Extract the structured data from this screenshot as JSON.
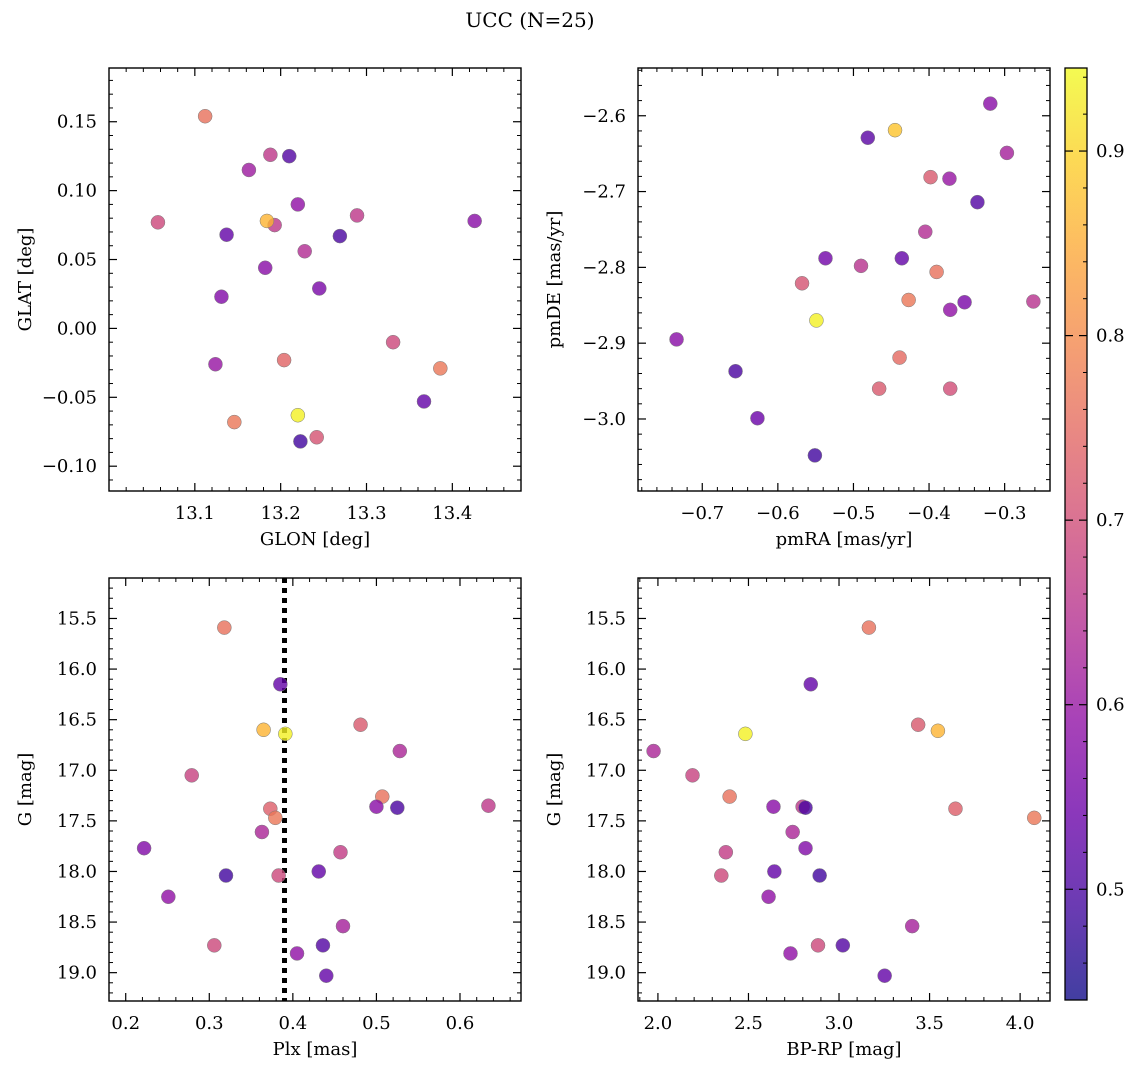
{
  "figure": {
    "title": "UCC (N=25)"
  },
  "colorbar": {
    "range": [
      0.44,
      0.945
    ],
    "ticks": [
      0.5,
      0.6,
      0.7,
      0.8,
      0.9
    ],
    "tick_labels": [
      "0.5",
      "0.6",
      "0.7",
      "0.8",
      "0.9"
    ],
    "colormap": "plasma"
  },
  "chart_data": [
    {
      "type": "scatter",
      "xlabel": "GLON [deg]",
      "ylabel": "GLAT [deg]",
      "xlim": [
        13.0,
        13.48
      ],
      "ylim": [
        -0.118,
        0.189
      ],
      "xticks": [
        13.1,
        13.2,
        13.3,
        13.4
      ],
      "xtick_labels": [
        "13.1",
        "13.2",
        "13.3",
        "13.4"
      ],
      "yticks": [
        -0.1,
        -0.05,
        0.0,
        0.05,
        0.1,
        0.15
      ],
      "ytick_labels": [
        "−0.10",
        "−0.05",
        "0.00",
        "0.05",
        "0.10",
        "0.15"
      ],
      "x": [
        13.112,
        13.188,
        13.21,
        13.163,
        13.22,
        13.289,
        13.057,
        13.193,
        13.137,
        13.228,
        13.269,
        13.182,
        13.245,
        13.131,
        13.426,
        13.331,
        13.386,
        13.124,
        13.204,
        13.22,
        13.367,
        13.146,
        13.242,
        13.223,
        13.184
      ],
      "y": [
        0.154,
        0.126,
        0.125,
        0.115,
        0.09,
        0.082,
        0.077,
        0.075,
        0.068,
        0.056,
        0.067,
        0.044,
        0.029,
        0.023,
        0.078,
        -0.01,
        -0.029,
        -0.026,
        -0.023,
        -0.063,
        -0.053,
        -0.068,
        -0.079,
        -0.082,
        0.078
      ],
      "c": [
        0.76,
        0.66,
        0.51,
        0.61,
        0.59,
        0.66,
        0.69,
        0.66,
        0.53,
        0.64,
        0.5,
        0.58,
        0.56,
        0.57,
        0.58,
        0.69,
        0.77,
        0.6,
        0.74,
        0.935,
        0.53,
        0.77,
        0.71,
        0.49,
        0.86
      ]
    },
    {
      "type": "scatter",
      "xlabel": "pmRA [mas/yr]",
      "ylabel": "pmDE [mas/yr]",
      "xlim": [
        -0.785,
        -0.24
      ],
      "ylim": [
        -3.095,
        -2.537
      ],
      "xticks": [
        -0.7,
        -0.6,
        -0.5,
        -0.4,
        -0.3
      ],
      "xtick_labels": [
        "−0.7",
        "−0.6",
        "−0.5",
        "−0.4",
        "−0.3"
      ],
      "yticks": [
        -3.0,
        -2.9,
        -2.8,
        -2.7,
        -2.6
      ],
      "ytick_labels": [
        "−3.0",
        "−2.9",
        "−2.8",
        "−2.7",
        "−2.6"
      ],
      "x": [
        -0.319,
        -0.445,
        -0.481,
        -0.297,
        -0.398,
        -0.373,
        -0.336,
        -0.405,
        -0.537,
        -0.436,
        -0.49,
        -0.39,
        -0.568,
        -0.427,
        -0.353,
        -0.372,
        -0.262,
        -0.549,
        -0.734,
        -0.439,
        -0.656,
        -0.466,
        -0.372,
        -0.627,
        -0.551
      ],
      "y": [
        -2.584,
        -2.619,
        -2.629,
        -2.649,
        -2.681,
        -2.683,
        -2.714,
        -2.753,
        -2.788,
        -2.788,
        -2.798,
        -2.806,
        -2.821,
        -2.843,
        -2.846,
        -2.856,
        -2.845,
        -2.87,
        -2.895,
        -2.919,
        -2.937,
        -2.96,
        -2.96,
        -2.999,
        -3.048
      ],
      "c": [
        0.58,
        0.88,
        0.52,
        0.62,
        0.72,
        0.6,
        0.51,
        0.64,
        0.55,
        0.53,
        0.65,
        0.76,
        0.71,
        0.77,
        0.56,
        0.59,
        0.65,
        0.935,
        0.58,
        0.75,
        0.5,
        0.72,
        0.7,
        0.54,
        0.49
      ]
    },
    {
      "type": "scatter",
      "xlabel": "Plx [mas]",
      "ylabel": "G [mag]",
      "xlim": [
        0.18,
        0.673
      ],
      "ylim": [
        19.28,
        15.1
      ],
      "xticks": [
        0.2,
        0.3,
        0.4,
        0.5,
        0.6
      ],
      "xtick_labels": [
        "0.2",
        "0.3",
        "0.4",
        "0.5",
        "0.6"
      ],
      "yticks": [
        15.5,
        16.0,
        16.5,
        17.0,
        17.5,
        18.0,
        18.5,
        19.0
      ],
      "ytick_labels": [
        "15.5",
        "16.0",
        "16.5",
        "17.0",
        "17.5",
        "18.0",
        "18.5",
        "19.0"
      ],
      "vline": 0.39,
      "x": [
        0.318,
        0.385,
        0.365,
        0.391,
        0.481,
        0.528,
        0.279,
        0.507,
        0.634,
        0.5,
        0.525,
        0.373,
        0.379,
        0.363,
        0.457,
        0.222,
        0.431,
        0.32,
        0.383,
        0.251,
        0.46,
        0.436,
        0.306,
        0.405,
        0.44
      ],
      "y": [
        15.59,
        16.15,
        16.6,
        16.64,
        16.55,
        16.81,
        17.05,
        17.26,
        17.35,
        17.36,
        17.37,
        17.38,
        17.47,
        17.61,
        17.81,
        17.77,
        18.0,
        18.04,
        18.04,
        18.25,
        18.54,
        18.73,
        18.73,
        18.81,
        19.03
      ],
      "c": [
        0.76,
        0.53,
        0.86,
        0.935,
        0.72,
        0.63,
        0.68,
        0.76,
        0.66,
        0.58,
        0.5,
        0.73,
        0.77,
        0.63,
        0.67,
        0.57,
        0.53,
        0.49,
        0.69,
        0.59,
        0.62,
        0.51,
        0.69,
        0.59,
        0.53
      ]
    },
    {
      "type": "scatter",
      "xlabel": "BP-RP [mag]",
      "ylabel": "G [mag]",
      "xlim": [
        1.89,
        4.165
      ],
      "ylim": [
        19.28,
        15.1
      ],
      "xticks": [
        2.0,
        2.5,
        3.0,
        3.5,
        4.0
      ],
      "xtick_labels": [
        "2.0",
        "2.5",
        "3.0",
        "3.5",
        "4.0"
      ],
      "yticks": [
        15.5,
        16.0,
        16.5,
        17.0,
        17.5,
        18.0,
        18.5,
        19.0
      ],
      "ytick_labels": [
        "15.5",
        "16.0",
        "16.5",
        "17.0",
        "17.5",
        "18.0",
        "18.5",
        "19.0"
      ],
      "x": [
        3.165,
        2.844,
        2.483,
        3.437,
        3.546,
        1.976,
        2.191,
        2.396,
        3.643,
        4.078,
        2.638,
        2.799,
        2.815,
        2.744,
        2.375,
        2.815,
        2.643,
        2.893,
        2.35,
        2.611,
        3.404,
        2.884,
        3.021,
        2.732,
        3.252
      ],
      "y": [
        15.59,
        16.15,
        16.64,
        16.55,
        16.61,
        16.81,
        17.05,
        17.26,
        17.38,
        17.47,
        17.36,
        17.36,
        17.37,
        17.61,
        17.81,
        17.77,
        18.0,
        18.04,
        18.04,
        18.25,
        18.54,
        18.73,
        18.73,
        18.81,
        19.03
      ],
      "c": [
        0.76,
        0.53,
        0.935,
        0.72,
        0.86,
        0.63,
        0.68,
        0.76,
        0.73,
        0.77,
        0.58,
        0.66,
        0.5,
        0.63,
        0.67,
        0.57,
        0.53,
        0.49,
        0.69,
        0.59,
        0.62,
        0.69,
        0.51,
        0.59,
        0.53
      ]
    }
  ]
}
